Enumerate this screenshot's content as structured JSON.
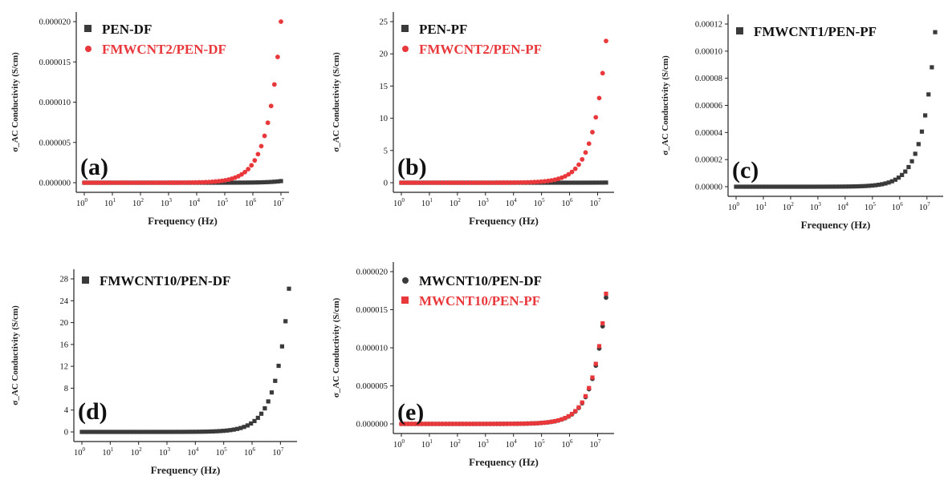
{
  "colors": {
    "black": "#3a3a3a",
    "red": "#e8383c"
  },
  "chart_data": [
    {
      "id": "a",
      "type": "scatter",
      "panel_label": "(a)",
      "xlabel": "Frequency (Hz)",
      "ylabel": "σ_AC Conductivity (S/cm)",
      "xscale": "log",
      "xlim": [
        1,
        10000000
      ],
      "ylim": [
        0,
        2e-05
      ],
      "yticks": [
        "0.000000",
        "0.000005",
        "0.000010",
        "0.000015",
        "0.000020"
      ],
      "legend_position": "top-left",
      "series": [
        {
          "name": "PEN-DF",
          "marker": "square",
          "color": "#3a3a3a",
          "growth": "exp",
          "start": 0,
          "end": 2e-07,
          "x_end": 10000000
        },
        {
          "name": "FMWCNT2/PEN-DF",
          "marker": "circle",
          "color": "#e8383c",
          "growth": "exp",
          "start": 0,
          "end": 2e-05,
          "x_end": 10000000
        }
      ]
    },
    {
      "id": "b",
      "type": "scatter",
      "panel_label": "(b)",
      "xlabel": "Frequency (Hz)",
      "ylabel": "σ_AC Conductivity (S/cm)",
      "xscale": "log",
      "xlim": [
        1,
        20000000
      ],
      "ylim": [
        0,
        25
      ],
      "yticks": [
        "0",
        "5",
        "10",
        "15",
        "20",
        "25"
      ],
      "legend_position": "top-left",
      "series": [
        {
          "name": "PEN-PF",
          "marker": "square",
          "color": "#3a3a3a",
          "growth": "exp",
          "start": 0,
          "end": 0.02,
          "x_end": 20000000
        },
        {
          "name": "FMWCNT2/PEN-PF",
          "marker": "circle",
          "color": "#e8383c",
          "growth": "exp",
          "start": 0,
          "end": 22,
          "x_end": 20000000
        }
      ]
    },
    {
      "id": "c",
      "type": "scatter",
      "panel_label": "(c)",
      "xlabel": "Frequency (Hz)",
      "ylabel": "σ_AC Conductivity (S/cm)",
      "xscale": "log",
      "xlim": [
        1,
        20000000
      ],
      "ylim": [
        0,
        0.00012
      ],
      "yticks": [
        "0.00000",
        "0.00002",
        "0.00004",
        "0.00006",
        "0.00008",
        "0.00010",
        "0.00012"
      ],
      "legend_position": "top-left",
      "series": [
        {
          "name": "FMWCNT1/PEN-PF",
          "marker": "square",
          "color": "#3a3a3a",
          "growth": "exp",
          "start": 0,
          "end": 0.000114,
          "x_end": 20000000
        }
      ]
    },
    {
      "id": "d",
      "type": "scatter",
      "panel_label": "(d)",
      "xlabel": "Frequency (Hz)",
      "ylabel": "σ_AC Conductivity (S/cm)",
      "xscale": "log",
      "xlim": [
        1,
        20000000
      ],
      "ylim": [
        0,
        28
      ],
      "yticks": [
        "0",
        "4",
        "8",
        "12",
        "16",
        "20",
        "24",
        "28"
      ],
      "legend_position": "top-left",
      "series": [
        {
          "name": "FMWCNT10/PEN-DF",
          "marker": "square",
          "color": "#3a3a3a",
          "growth": "exp",
          "start": 0,
          "end": 26.2,
          "x_end": 20000000
        }
      ]
    },
    {
      "id": "e",
      "type": "scatter",
      "panel_label": "(e)",
      "xlabel": "Frequency (Hz)",
      "ylabel": "σ_AC Conductivity (S/cm)",
      "xscale": "log",
      "xlim": [
        1,
        20000000
      ],
      "ylim": [
        0,
        2e-05
      ],
      "yticks": [
        "0.000000",
        "0.000005",
        "0.000010",
        "0.000015",
        "0.000020"
      ],
      "legend_position": "top-left",
      "series": [
        {
          "name": "MWCNT10/PEN-DF",
          "marker": "circle",
          "color": "#3a3a3a",
          "growth": "exp",
          "start": 0,
          "end": 1.66e-05,
          "x_end": 20000000
        },
        {
          "name": "MWCNT10/PEN-PF",
          "marker": "square",
          "color": "#e8383c",
          "growth": "exp",
          "start": 0,
          "end": 1.71e-05,
          "x_end": 20000000
        }
      ]
    }
  ]
}
